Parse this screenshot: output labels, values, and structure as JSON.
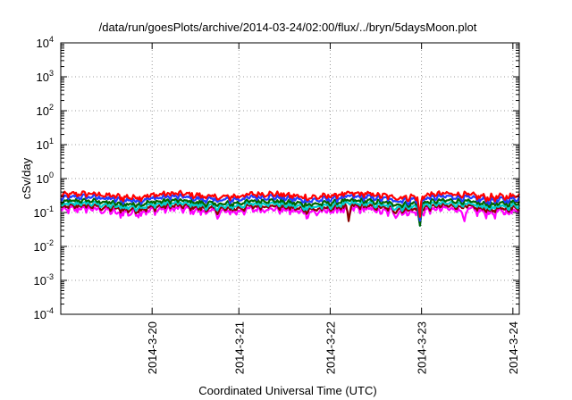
{
  "chart_data": {
    "type": "line",
    "title": "/data/run/goesPlots/archive/2014-03-24/02:00/flux/../bryn/5daysMoon.plot",
    "xlabel": "Coordinated Universal Time (UTC)",
    "ylabel": "cSv/day",
    "y_scale": "log",
    "ylim": [
      0.0001,
      10000
    ],
    "xlim": [
      0.0,
      5.02
    ],
    "y_ticks": [
      {
        "exp": "-4"
      },
      {
        "exp": "-3"
      },
      {
        "exp": "-2"
      },
      {
        "exp": "-1"
      },
      {
        "exp": "0"
      },
      {
        "exp": "1"
      },
      {
        "exp": "2"
      },
      {
        "exp": "3"
      },
      {
        "exp": "4"
      }
    ],
    "x_ticks": [
      {
        "label": "2014-3-20",
        "x": 1.0
      },
      {
        "label": "2014-3-21",
        "x": 1.95
      },
      {
        "label": "2014-3-22",
        "x": 2.95
      },
      {
        "label": "2014-3-23",
        "x": 3.95
      },
      {
        "label": "2014-3-24",
        "x": 4.95
      }
    ],
    "grid": true,
    "series": [
      {
        "color": "#ff00ff",
        "base": 0.115,
        "amp": 0.3,
        "dips": [
          [
            0.62,
            0.3
          ],
          [
            3.15,
            0.55
          ],
          [
            3.52,
            0.2
          ],
          [
            3.93,
            0.28
          ],
          [
            4.42,
            0.65
          ]
        ]
      },
      {
        "color": "#8b0000",
        "base": 0.14,
        "amp": 0.22,
        "dips": [
          [
            3.15,
            0.7
          ],
          [
            3.93,
            0.75
          ]
        ]
      },
      {
        "color": "#00ced1",
        "base": 0.165,
        "amp": 0.2,
        "dips": [
          [
            3.93,
            0.8
          ]
        ]
      },
      {
        "color": "#006400",
        "base": 0.2,
        "amp": 0.18,
        "dips": [
          [
            3.93,
            0.85
          ]
        ]
      },
      {
        "color": "#1e3cff",
        "base": 0.26,
        "amp": 0.22,
        "dips": [
          [
            3.93,
            0.85
          ]
        ]
      },
      {
        "color": "#ff0000",
        "base": 0.32,
        "amp": 0.22,
        "dips": [
          [
            3.93,
            0.85
          ]
        ]
      }
    ]
  }
}
